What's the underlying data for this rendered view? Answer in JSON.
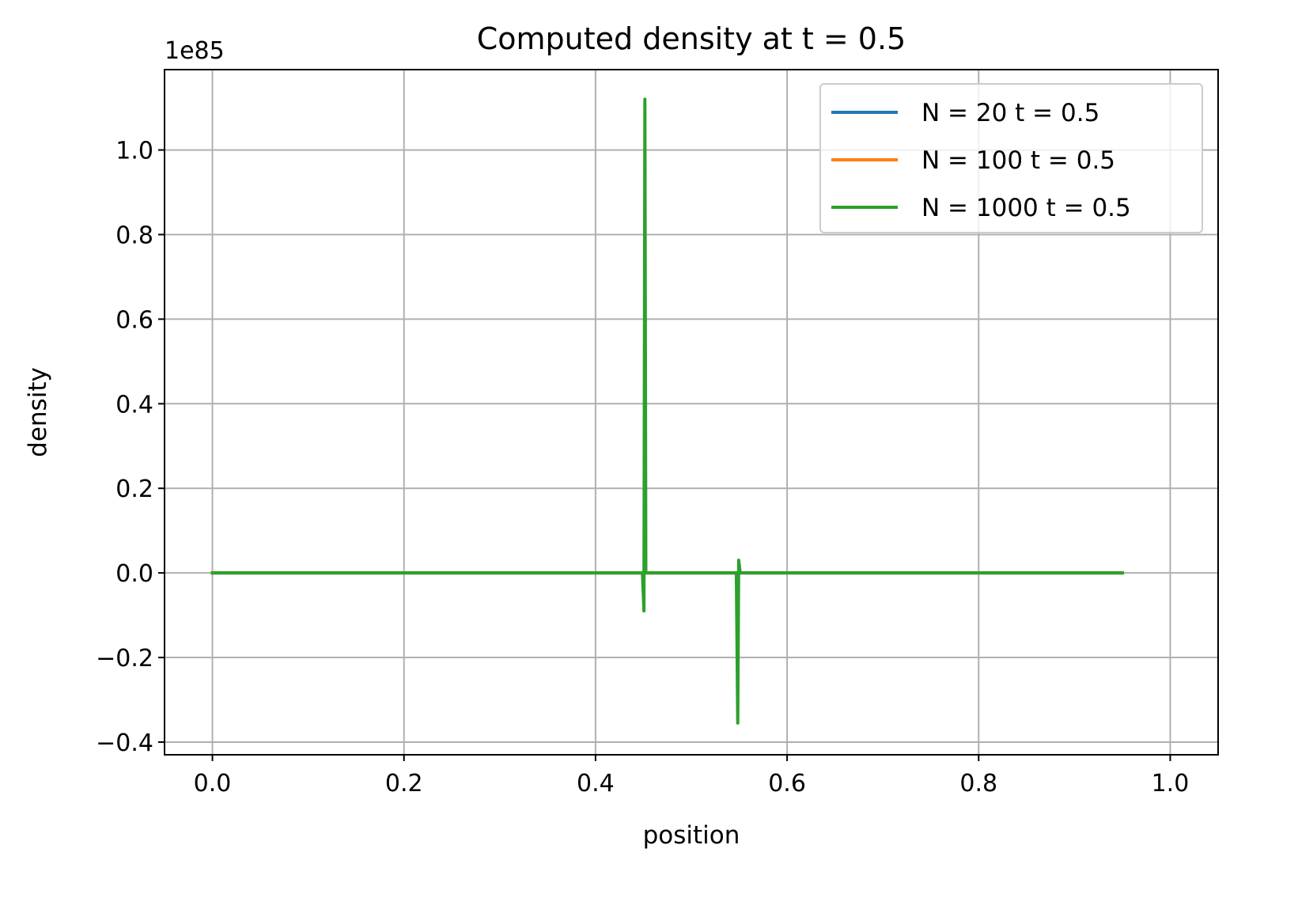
{
  "chart_data": {
    "type": "line",
    "title": "Computed density at t = 0.5",
    "xlabel": "position",
    "ylabel": "density",
    "y_offset_label": "1e85",
    "xlim": [
      -0.05,
      1.05
    ],
    "ylim": [
      -0.43,
      1.19
    ],
    "x_ticks": [
      0.0,
      0.2,
      0.4,
      0.6,
      0.8,
      1.0
    ],
    "x_tick_labels": [
      "0.0",
      "0.2",
      "0.4",
      "0.6",
      "0.8",
      "1.0"
    ],
    "y_ticks": [
      -0.4,
      -0.2,
      0.0,
      0.2,
      0.4,
      0.6,
      0.8,
      1.0
    ],
    "y_tick_labels": [
      "−0.4",
      "−0.2",
      "0.0",
      "0.2",
      "0.4",
      "0.6",
      "0.8",
      "1.0"
    ],
    "grid": true,
    "legend_position": "top-right",
    "series": [
      {
        "name": "N = 20 t = 0.5",
        "color": "#1f77b4",
        "x": [
          0.0,
          0.95
        ],
        "y": [
          0.0,
          0.0
        ]
      },
      {
        "name": "N = 100 t = 0.5",
        "color": "#ff7f0e",
        "x": [
          0.0,
          0.95
        ],
        "y": [
          0.0,
          0.0
        ]
      },
      {
        "name": "N = 1000 t = 0.5",
        "color": "#2ca02c",
        "x": [
          0.0,
          0.447,
          0.449,
          0.4505,
          0.4515,
          0.4525,
          0.547,
          0.5485,
          0.5495,
          0.551,
          0.95
        ],
        "y": [
          0.0,
          0.0,
          0.0,
          -0.09,
          1.12,
          0.0,
          0.0,
          -0.355,
          0.03,
          0.0,
          0.0
        ]
      }
    ]
  }
}
